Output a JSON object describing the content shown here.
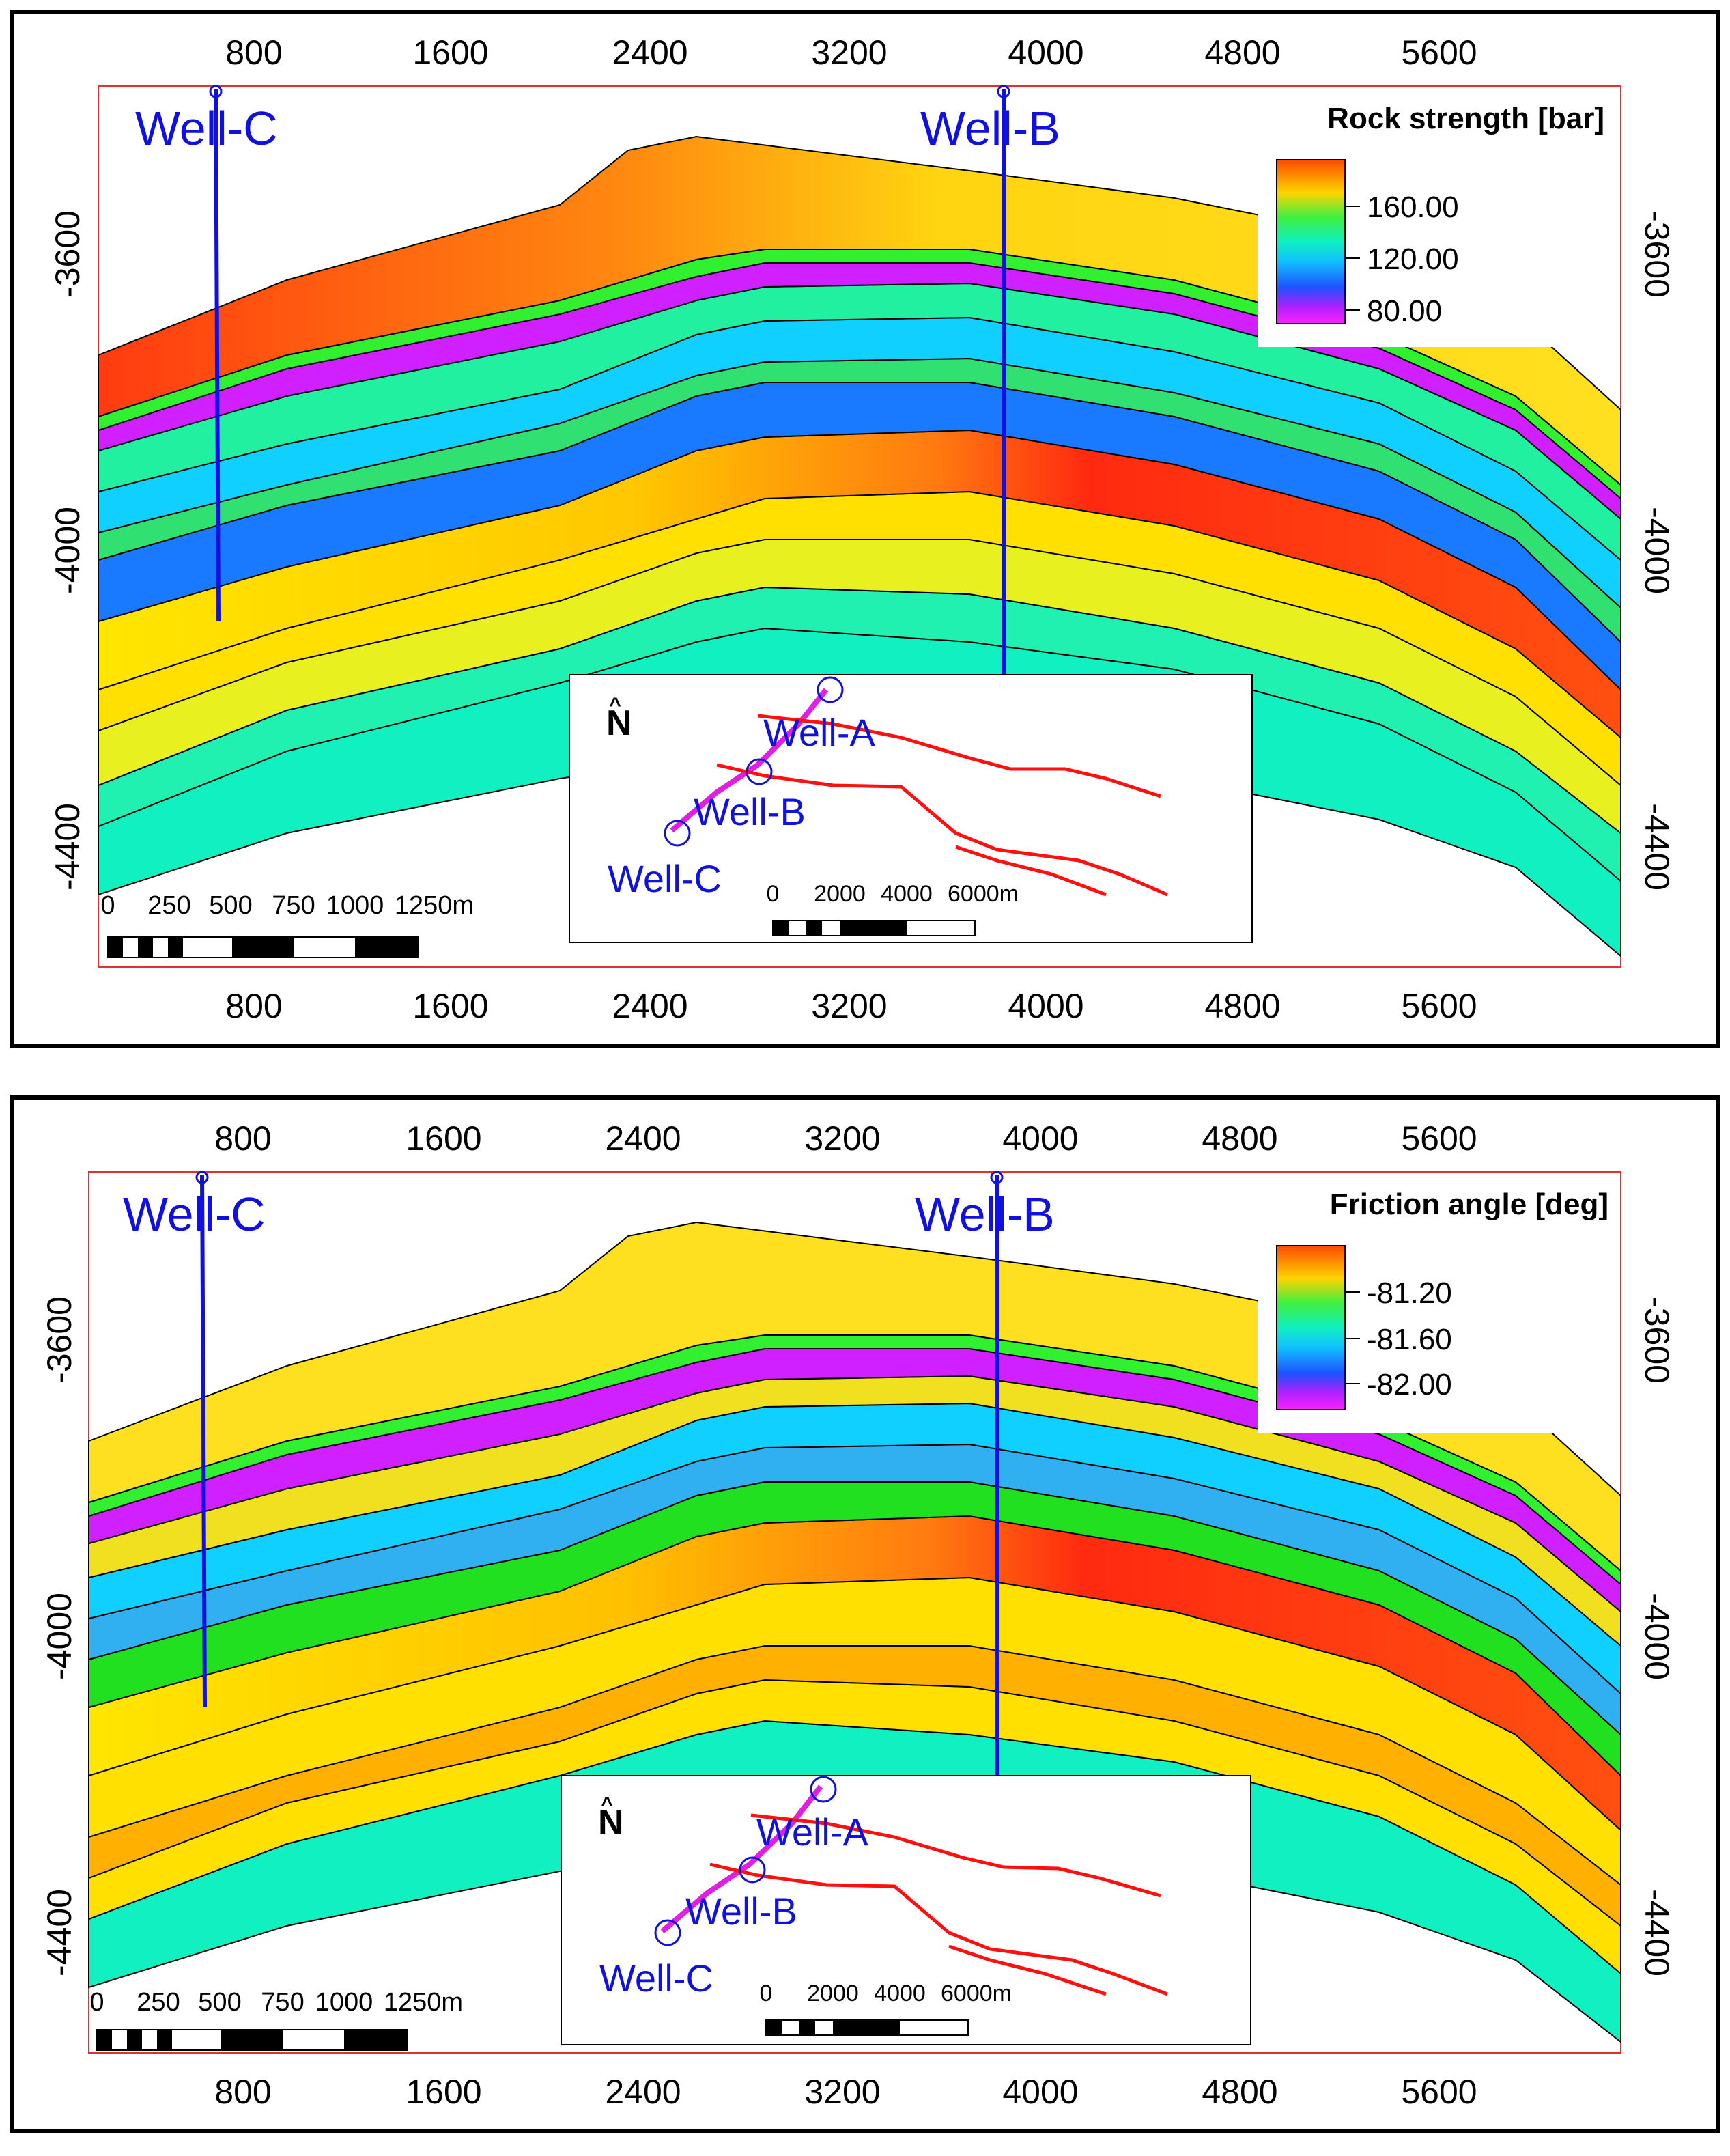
{
  "panels": [
    {
      "id": "rock-strength",
      "legend": {
        "title": "Rock strength [bar]",
        "ticks": [
          "160.00",
          "120.00",
          "80.00"
        ]
      },
      "well_labels": [
        "Well-C",
        "Well-B"
      ],
      "x_ticks": [
        "800",
        "1600",
        "2400",
        "3200",
        "4000",
        "4800",
        "5600"
      ],
      "y_ticks": [
        "-3600",
        "-4000",
        "-4400"
      ],
      "scale_bar": {
        "ticks": [
          "0",
          "250",
          "500",
          "750",
          "1000",
          "1250m"
        ]
      },
      "inset": {
        "north": "N",
        "wells": [
          "Well-A",
          "Well-B",
          "Well-C"
        ],
        "scale_ticks": [
          "0",
          "2000",
          "4000",
          "6000m"
        ]
      }
    },
    {
      "id": "friction-angle",
      "legend": {
        "title": "Friction angle [deg]",
        "ticks": [
          "-81.20",
          "-81.60",
          "-82.00"
        ]
      },
      "well_labels": [
        "Well-C",
        "Well-B"
      ],
      "x_ticks": [
        "800",
        "1600",
        "2400",
        "3200",
        "4000",
        "4800",
        "5600"
      ],
      "y_ticks": [
        "-3600",
        "-4000",
        "-4400"
      ],
      "scale_bar": {
        "ticks": [
          "0",
          "250",
          "500",
          "750",
          "1000",
          "1250m"
        ]
      },
      "inset": {
        "north": "N",
        "wells": [
          "Well-A",
          "Well-B",
          "Well-C"
        ],
        "scale_ticks": [
          "0",
          "2000",
          "4000",
          "6000m"
        ]
      }
    }
  ],
  "colors": {
    "well": "#1010e0",
    "well_track": "#e020e0",
    "fault": "#ff1010",
    "frame": "#e03030"
  }
}
